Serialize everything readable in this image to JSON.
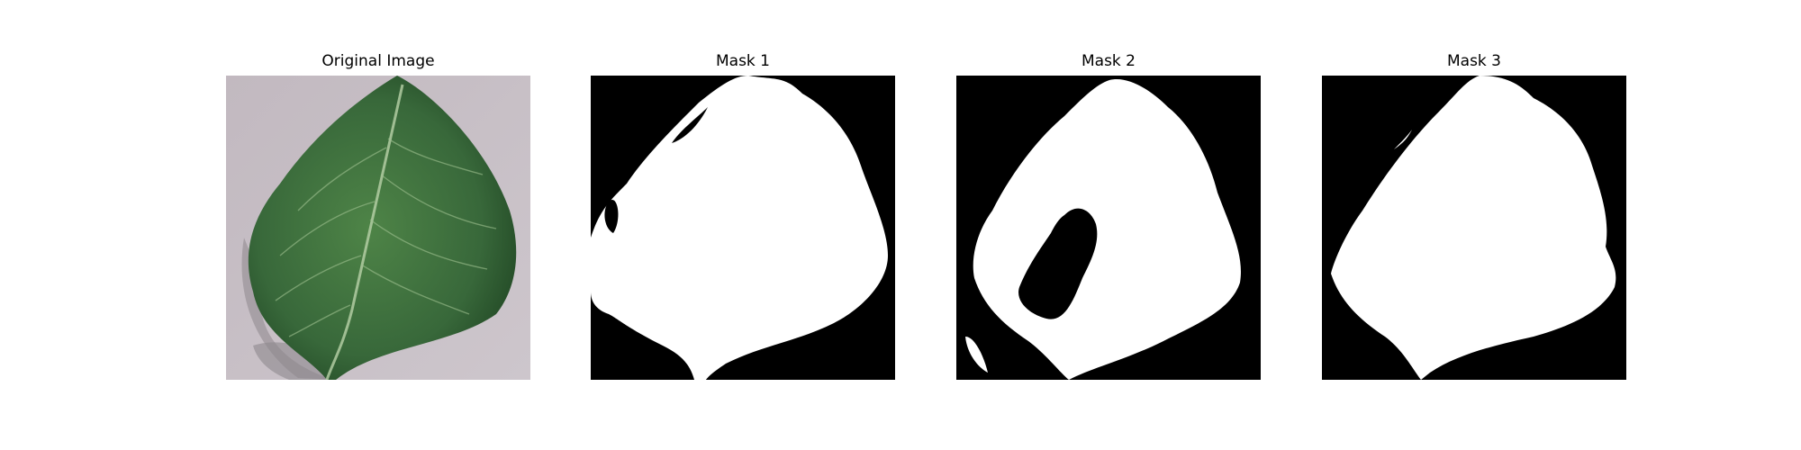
{
  "figure": {
    "panels": [
      {
        "id": "original",
        "title": "Original Image"
      },
      {
        "id": "mask1",
        "title": "Mask 1"
      },
      {
        "id": "mask2",
        "title": "Mask 2"
      },
      {
        "id": "mask3",
        "title": "Mask 3"
      }
    ],
    "colors": {
      "leaf_dark": "#2f5a2c",
      "leaf_light": "#4d7f45",
      "background_surface": "#c9c2c8",
      "mask_foreground": "#ffffff",
      "mask_background": "#000000"
    }
  }
}
